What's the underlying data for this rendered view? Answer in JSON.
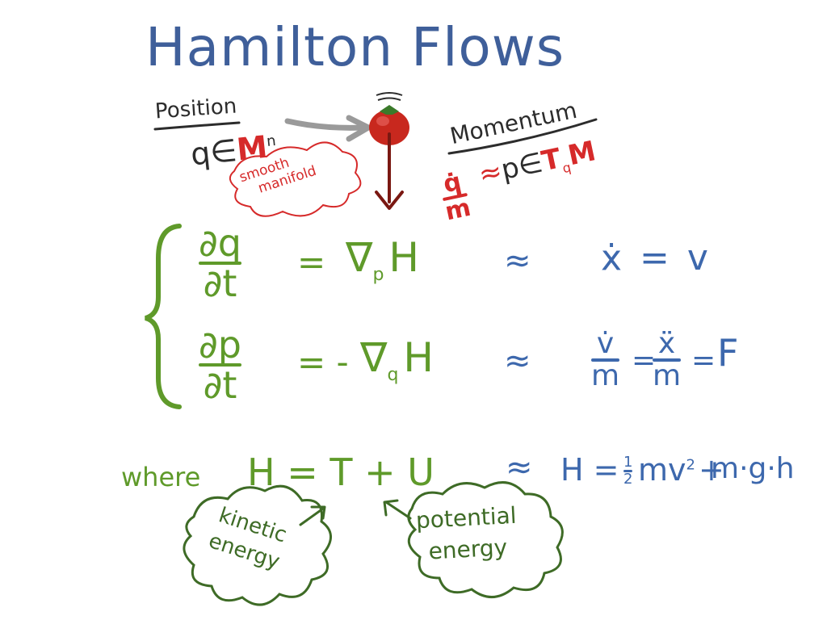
{
  "title": "Hamilton Flows",
  "position": {
    "label": "Position",
    "expr_q": "q",
    "expr_in": "∈",
    "expr_M": "M",
    "expr_n": "n"
  },
  "manifold_note": {
    "line1": "smooth",
    "line2": "manifold"
  },
  "momentum": {
    "label": "Momentum",
    "expr_p": "p",
    "expr_in": "∈",
    "expr_T": "T",
    "expr_sub": "q",
    "expr_M": "M",
    "approx": "≈",
    "qdot_num": "q̇",
    "qdot_den": "m"
  },
  "eq1": {
    "num": "∂q",
    "den": "∂t",
    "eq": "=",
    "rhs_nabla": "∇",
    "rhs_sub": "p",
    "rhs_H": "H",
    "approx": "≈",
    "right_lhs": "ẋ",
    "right_eq": "=",
    "right_rhs": "v"
  },
  "eq2": {
    "num": "∂p",
    "den": "∂t",
    "eq": "= -",
    "rhs_nabla": "∇",
    "rhs_sub": "q",
    "rhs_H": "H",
    "approx": "≈",
    "f1_num": "v̇",
    "f1_den": "m",
    "eq_a": "=",
    "f2_num": "ẍ",
    "f2_den": "m",
    "eq_b": "=",
    "F": "F"
  },
  "where": {
    "label": "where",
    "expr": "H = T + U",
    "approx": "≈",
    "right_H": "H =",
    "half_num": "1",
    "half_den": "2",
    "right_mv": "mv",
    "right_sq": "2",
    "right_plus": "+",
    "right_mgh": "m·g·h"
  },
  "kinetic": {
    "line1": "kinetic",
    "line2": "energy"
  },
  "potential": {
    "line1": "potential",
    "line2": "energy"
  },
  "colors": {
    "title": "#3f5f9a",
    "blue": "#3d68ad",
    "green": "#5f9a2a",
    "dark_green": "#3e6b26",
    "red": "#d62a2a",
    "dark": "#2c2c2c",
    "tomato": "#c8281e"
  }
}
